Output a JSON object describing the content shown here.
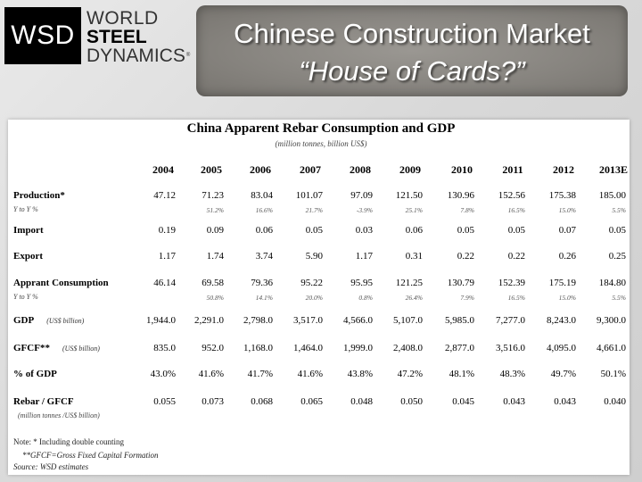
{
  "logo": {
    "abbr": "WSD",
    "line1": "WORLD",
    "line2": "STEEL",
    "line3": "DYNAMICS",
    "tm": "®"
  },
  "title": {
    "line1": "Chinese Construction Market",
    "line2": "“House of Cards?”"
  },
  "table": {
    "title": "China Apparent Rebar Consumption and GDP",
    "subtitle": "(million tonnes, billion US$)",
    "years": [
      "2004",
      "2005",
      "2006",
      "2007",
      "2008",
      "2009",
      "2010",
      "2011",
      "2012",
      "2013E"
    ],
    "rows": [
      {
        "label": "Production*",
        "unit": "",
        "values": [
          "47.12",
          "71.23",
          "83.04",
          "101.07",
          "97.09",
          "121.50",
          "130.96",
          "152.56",
          "175.38",
          "185.00"
        ],
        "sub_label": "Y to Y %",
        "sub_values": [
          "",
          "51.2%",
          "16.6%",
          "21.7%",
          "-3.9%",
          "25.1%",
          "7.8%",
          "16.5%",
          "15.0%",
          "5.5%"
        ]
      },
      {
        "label": "Import",
        "unit": "",
        "values": [
          "0.19",
          "0.09",
          "0.06",
          "0.05",
          "0.03",
          "0.06",
          "0.05",
          "0.05",
          "0.07",
          "0.05"
        ]
      },
      {
        "label": "Export",
        "unit": "",
        "values": [
          "1.17",
          "1.74",
          "3.74",
          "5.90",
          "1.17",
          "0.31",
          "0.22",
          "0.22",
          "0.26",
          "0.25"
        ]
      },
      {
        "label": "Apprant Consumption",
        "unit": "",
        "values": [
          "46.14",
          "69.58",
          "79.36",
          "95.22",
          "95.95",
          "121.25",
          "130.79",
          "152.39",
          "175.19",
          "184.80"
        ],
        "sub_label": "Y to Y %",
        "sub_values": [
          "",
          "50.8%",
          "14.1%",
          "20.0%",
          "0.8%",
          "26.4%",
          "7.9%",
          "16.5%",
          "15.0%",
          "5.5%"
        ]
      },
      {
        "label": "GDP",
        "unit": "(US$ billion)",
        "values": [
          "1,944.0",
          "2,291.0",
          "2,798.0",
          "3,517.0",
          "4,566.0",
          "5,107.0",
          "5,985.0",
          "7,277.0",
          "8,243.0",
          "9,300.0"
        ]
      },
      {
        "label": "GFCF**",
        "unit": "(US$ billion)",
        "values": [
          "835.0",
          "952.0",
          "1,168.0",
          "1,464.0",
          "1,999.0",
          "2,408.0",
          "2,877.0",
          "3,516.0",
          "4,095.0",
          "4,661.0"
        ]
      },
      {
        "label": "% of GDP",
        "unit": "",
        "values": [
          "43.0%",
          "41.6%",
          "41.7%",
          "41.6%",
          "43.8%",
          "47.2%",
          "48.1%",
          "48.3%",
          "49.7%",
          "50.1%"
        ]
      },
      {
        "label": "Rebar / GFCF",
        "unit": "",
        "values": [
          "0.055",
          "0.073",
          "0.068",
          "0.065",
          "0.048",
          "0.050",
          "0.045",
          "0.043",
          "0.043",
          "0.040"
        ],
        "sub_label": "(million tonnes /US$ billion)"
      }
    ],
    "notes": [
      "Note: * Including double counting",
      "**GFCF=Gross  Fixed Capital Formation",
      "Source: WSD estimates"
    ]
  }
}
